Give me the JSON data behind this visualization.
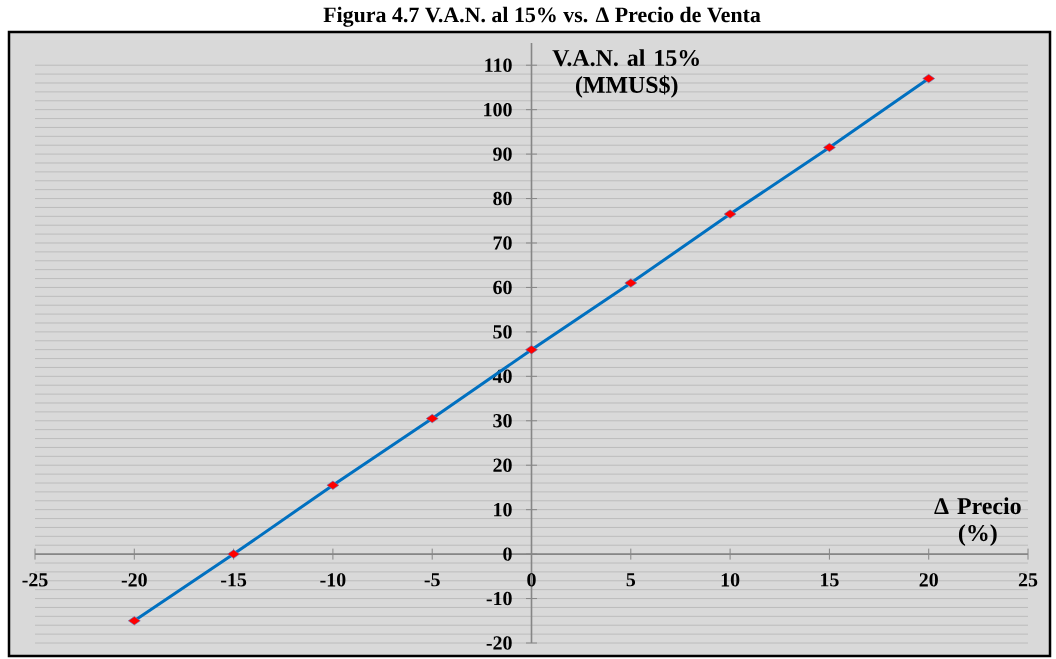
{
  "chart_data": {
    "type": "line",
    "title": "Figura 4.7 V.A.N. al 15% vs. Δ Precio de Venta",
    "xlabel": "Δ Precio (%)",
    "ylabel": "V.A.N. al 15% (MMUS$)",
    "x": [
      -20,
      -15,
      -10,
      -5,
      0,
      5,
      10,
      15,
      20
    ],
    "series": [
      {
        "color": "#0070c0",
        "values": [
          -15,
          0,
          15.5,
          30.5,
          46,
          61,
          76.5,
          91.5,
          107
        ]
      }
    ],
    "xlim": [
      -25,
      25
    ],
    "ylim": [
      -20,
      115
    ],
    "xticks": [
      -25,
      -20,
      -15,
      -10,
      -5,
      0,
      5,
      10,
      15,
      20,
      25
    ],
    "yticks": [
      -20,
      -10,
      0,
      10,
      20,
      30,
      40,
      50,
      60,
      70,
      80,
      90,
      100,
      110
    ],
    "grid": "y",
    "marker": "diamond",
    "line_style": "solid"
  }
}
